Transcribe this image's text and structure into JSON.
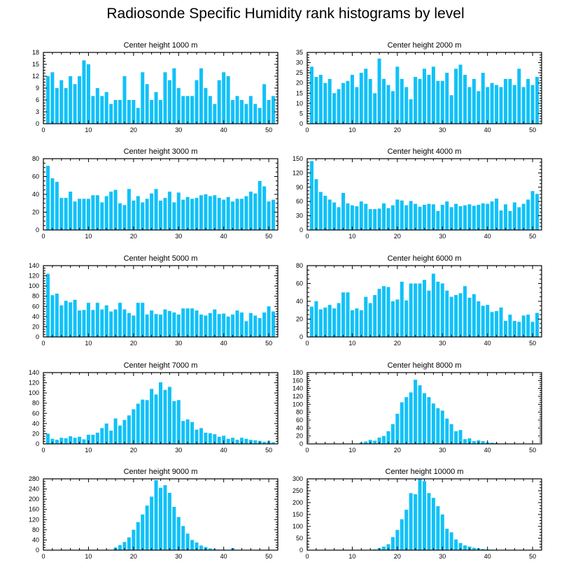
{
  "title": "Radiosonde Specific Humidity rank histograms by level",
  "colors": {
    "bar": "#11c1f8",
    "axis": "#000000",
    "background": "#ffffff"
  },
  "chart_data": [
    {
      "type": "bar",
      "title": "Center height 1000 m",
      "xlim": [
        0,
        52
      ],
      "ylim": [
        0,
        18
      ],
      "xticks": [
        0,
        10,
        20,
        30,
        40,
        50
      ],
      "yticks": [
        0,
        3,
        6,
        9,
        12,
        15,
        18
      ],
      "categories": [
        1,
        2,
        3,
        4,
        5,
        6,
        7,
        8,
        9,
        10,
        11,
        12,
        13,
        14,
        15,
        16,
        17,
        18,
        19,
        20,
        21,
        22,
        23,
        24,
        25,
        26,
        27,
        28,
        29,
        30,
        31,
        32,
        33,
        34,
        35,
        36,
        37,
        38,
        39,
        40,
        41,
        42,
        43,
        44,
        45,
        46,
        47,
        48,
        49,
        50,
        51
      ],
      "values": [
        12,
        13,
        9,
        11,
        9,
        12,
        10,
        12,
        16,
        15,
        7,
        9,
        7,
        8,
        5,
        6,
        6,
        12,
        6,
        6,
        4,
        13,
        10,
        6,
        8,
        6,
        13,
        11,
        14,
        9,
        7,
        7,
        7,
        11,
        14,
        9,
        7,
        5,
        11,
        13,
        12,
        6,
        7,
        6,
        5,
        7,
        5,
        4,
        10,
        6,
        7
      ]
    },
    {
      "type": "bar",
      "title": "Center height 2000 m",
      "xlim": [
        0,
        52
      ],
      "ylim": [
        0,
        35
      ],
      "xticks": [
        0,
        10,
        20,
        30,
        40,
        50
      ],
      "yticks": [
        0,
        5,
        10,
        15,
        20,
        25,
        30,
        35
      ],
      "categories": [
        1,
        2,
        3,
        4,
        5,
        6,
        7,
        8,
        9,
        10,
        11,
        12,
        13,
        14,
        15,
        16,
        17,
        18,
        19,
        20,
        21,
        22,
        23,
        24,
        25,
        26,
        27,
        28,
        29,
        30,
        31,
        32,
        33,
        34,
        35,
        36,
        37,
        38,
        39,
        40,
        41,
        42,
        43,
        44,
        45,
        46,
        47,
        48,
        49,
        50,
        51
      ],
      "values": [
        28,
        23,
        24,
        20,
        22,
        15,
        17,
        20,
        21,
        24,
        18,
        25,
        27,
        22,
        15,
        32,
        22,
        19,
        16,
        28,
        22,
        18,
        12,
        23,
        22,
        27,
        24,
        28,
        21,
        21,
        25,
        14,
        27,
        29,
        24,
        18,
        22,
        16,
        25,
        18,
        20,
        19,
        18,
        22,
        22,
        19,
        27,
        18,
        22,
        19,
        23
      ]
    },
    {
      "type": "bar",
      "title": "Center height 3000 m",
      "xlim": [
        0,
        52
      ],
      "ylim": [
        0,
        80
      ],
      "xticks": [
        0,
        10,
        20,
        30,
        40,
        50
      ],
      "yticks": [
        0,
        20,
        40,
        60,
        80
      ],
      "categories": [
        1,
        2,
        3,
        4,
        5,
        6,
        7,
        8,
        9,
        10,
        11,
        12,
        13,
        14,
        15,
        16,
        17,
        18,
        19,
        20,
        21,
        22,
        23,
        24,
        25,
        26,
        27,
        28,
        29,
        30,
        31,
        32,
        33,
        34,
        35,
        36,
        37,
        38,
        39,
        40,
        41,
        42,
        43,
        44,
        45,
        46,
        47,
        48,
        49,
        50,
        51
      ],
      "values": [
        72,
        58,
        54,
        36,
        36,
        43,
        32,
        35,
        35,
        35,
        39,
        39,
        31,
        38,
        43,
        45,
        30,
        28,
        46,
        33,
        38,
        31,
        35,
        41,
        46,
        33,
        36,
        43,
        31,
        42,
        34,
        37,
        35,
        36,
        39,
        40,
        38,
        39,
        36,
        34,
        37,
        32,
        35,
        35,
        38,
        43,
        41,
        55,
        49,
        32,
        34
      ]
    },
    {
      "type": "bar",
      "title": "Center height 4000 m",
      "xlim": [
        0,
        52
      ],
      "ylim": [
        0,
        150
      ],
      "xticks": [
        0,
        10,
        20,
        30,
        40,
        50
      ],
      "yticks": [
        0,
        30,
        60,
        90,
        120,
        150
      ],
      "categories": [
        1,
        2,
        3,
        4,
        5,
        6,
        7,
        8,
        9,
        10,
        11,
        12,
        13,
        14,
        15,
        16,
        17,
        18,
        19,
        20,
        21,
        22,
        23,
        24,
        25,
        26,
        27,
        28,
        29,
        30,
        31,
        32,
        33,
        34,
        35,
        36,
        37,
        38,
        39,
        40,
        41,
        42,
        43,
        44,
        45,
        46,
        47,
        48,
        49,
        50,
        51
      ],
      "values": [
        145,
        107,
        80,
        72,
        64,
        58,
        48,
        78,
        56,
        52,
        50,
        60,
        55,
        44,
        44,
        45,
        56,
        46,
        52,
        64,
        62,
        52,
        61,
        55,
        49,
        53,
        55,
        54,
        40,
        53,
        60,
        48,
        55,
        50,
        52,
        54,
        51,
        53,
        56,
        55,
        60,
        66,
        41,
        54,
        40,
        58,
        48,
        55,
        64,
        82,
        76
      ]
    },
    {
      "type": "bar",
      "title": "Center height 5000 m",
      "xlim": [
        0,
        52
      ],
      "ylim": [
        0,
        140
      ],
      "xticks": [
        0,
        10,
        20,
        30,
        40,
        50
      ],
      "yticks": [
        0,
        20,
        40,
        60,
        80,
        100,
        120,
        140
      ],
      "categories": [
        1,
        2,
        3,
        4,
        5,
        6,
        7,
        8,
        9,
        10,
        11,
        12,
        13,
        14,
        15,
        16,
        17,
        18,
        19,
        20,
        21,
        22,
        23,
        24,
        25,
        26,
        27,
        28,
        29,
        30,
        31,
        32,
        33,
        34,
        35,
        36,
        37,
        38,
        39,
        40,
        41,
        42,
        43,
        44,
        45,
        46,
        47,
        48,
        49,
        50,
        51
      ],
      "values": [
        124,
        82,
        85,
        62,
        71,
        68,
        73,
        52,
        53,
        67,
        53,
        67,
        54,
        62,
        50,
        54,
        67,
        54,
        47,
        42,
        67,
        67,
        44,
        52,
        45,
        44,
        54,
        51,
        48,
        44,
        56,
        56,
        56,
        52,
        44,
        42,
        47,
        54,
        45,
        46,
        40,
        44,
        52,
        48,
        31,
        47,
        42,
        37,
        48,
        60,
        50
      ]
    },
    {
      "type": "bar",
      "title": "Center height 6000 m",
      "xlim": [
        0,
        52
      ],
      "ylim": [
        0,
        80
      ],
      "xticks": [
        0,
        10,
        20,
        30,
        40,
        50
      ],
      "yticks": [
        0,
        20,
        40,
        60,
        80
      ],
      "categories": [
        1,
        2,
        3,
        4,
        5,
        6,
        7,
        8,
        9,
        10,
        11,
        12,
        13,
        14,
        15,
        16,
        17,
        18,
        19,
        20,
        21,
        22,
        23,
        24,
        25,
        26,
        27,
        28,
        29,
        30,
        31,
        32,
        33,
        34,
        35,
        36,
        37,
        38,
        39,
        40,
        41,
        42,
        43,
        44,
        45,
        46,
        47,
        48,
        49,
        50,
        51
      ],
      "values": [
        34,
        40,
        31,
        33,
        36,
        32,
        38,
        50,
        50,
        30,
        32,
        30,
        45,
        38,
        47,
        54,
        57,
        56,
        40,
        42,
        62,
        41,
        60,
        60,
        60,
        64,
        52,
        71,
        62,
        60,
        52,
        45,
        47,
        49,
        57,
        44,
        48,
        40,
        35,
        36,
        28,
        29,
        33,
        18,
        25,
        18,
        17,
        24,
        25,
        17,
        27
      ]
    },
    {
      "type": "bar",
      "title": "Center height 7000 m",
      "xlim": [
        0,
        52
      ],
      "ylim": [
        0,
        140
      ],
      "xticks": [
        0,
        10,
        20,
        30,
        40,
        50
      ],
      "yticks": [
        0,
        20,
        40,
        60,
        80,
        100,
        120,
        140
      ],
      "categories": [
        1,
        2,
        3,
        4,
        5,
        6,
        7,
        8,
        9,
        10,
        11,
        12,
        13,
        14,
        15,
        16,
        17,
        18,
        19,
        20,
        21,
        22,
        23,
        24,
        25,
        26,
        27,
        28,
        29,
        30,
        31,
        32,
        33,
        34,
        35,
        36,
        37,
        38,
        39,
        40,
        41,
        42,
        43,
        44,
        45,
        46,
        47,
        48,
        49,
        50,
        51
      ],
      "values": [
        20,
        10,
        8,
        12,
        11,
        15,
        12,
        14,
        9,
        18,
        18,
        22,
        31,
        40,
        26,
        50,
        36,
        47,
        56,
        68,
        79,
        87,
        86,
        108,
        97,
        121,
        106,
        112,
        84,
        86,
        45,
        48,
        43,
        28,
        31,
        22,
        21,
        19,
        14,
        16,
        10,
        12,
        8,
        12,
        10,
        8,
        7,
        6,
        4,
        5,
        3
      ]
    },
    {
      "type": "bar",
      "title": "Center height 8000 m",
      "xlim": [
        0,
        52
      ],
      "ylim": [
        0,
        180
      ],
      "xticks": [
        0,
        10,
        20,
        30,
        40,
        50
      ],
      "yticks": [
        0,
        20,
        40,
        60,
        80,
        100,
        120,
        140,
        160,
        180
      ],
      "categories": [
        1,
        2,
        3,
        4,
        5,
        6,
        7,
        8,
        9,
        10,
        11,
        12,
        13,
        14,
        15,
        16,
        17,
        18,
        19,
        20,
        21,
        22,
        23,
        24,
        25,
        26,
        27,
        28,
        29,
        30,
        31,
        32,
        33,
        34,
        35,
        36,
        37,
        38,
        39,
        40,
        41,
        42,
        43,
        44,
        45,
        46,
        47,
        48,
        49,
        50,
        51
      ],
      "values": [
        0,
        0,
        0,
        0,
        0,
        0,
        0,
        0,
        0,
        0,
        0,
        3,
        6,
        10,
        8,
        16,
        20,
        32,
        50,
        76,
        105,
        118,
        130,
        162,
        148,
        128,
        118,
        102,
        90,
        84,
        64,
        50,
        32,
        35,
        12,
        14,
        7,
        9,
        7,
        4,
        3,
        2,
        1,
        1,
        0,
        0,
        0,
        0,
        0,
        0,
        0
      ]
    },
    {
      "type": "bar",
      "title": "Center height 9000 m",
      "xlim": [
        0,
        52
      ],
      "ylim": [
        0,
        280
      ],
      "xticks": [
        0,
        10,
        20,
        30,
        40,
        50
      ],
      "yticks": [
        0,
        40,
        80,
        120,
        160,
        200,
        240,
        280
      ],
      "categories": [
        1,
        2,
        3,
        4,
        5,
        6,
        7,
        8,
        9,
        10,
        11,
        12,
        13,
        14,
        15,
        16,
        17,
        18,
        19,
        20,
        21,
        22,
        23,
        24,
        25,
        26,
        27,
        28,
        29,
        30,
        31,
        32,
        33,
        34,
        35,
        36,
        37,
        38,
        39,
        40,
        41,
        42,
        43,
        44,
        45,
        46,
        47,
        48,
        49,
        50,
        51
      ],
      "values": [
        0,
        0,
        0,
        0,
        0,
        0,
        0,
        0,
        0,
        0,
        0,
        0,
        0,
        1,
        1,
        10,
        20,
        32,
        50,
        80,
        110,
        140,
        175,
        210,
        275,
        245,
        255,
        225,
        170,
        130,
        95,
        65,
        40,
        30,
        18,
        12,
        7,
        4,
        2,
        2,
        0,
        8,
        0,
        0,
        0,
        0,
        0,
        0,
        0,
        0,
        0
      ]
    },
    {
      "type": "bar",
      "title": "Center height 10000 m",
      "xlim": [
        0,
        52
      ],
      "ylim": [
        0,
        300
      ],
      "xticks": [
        0,
        10,
        20,
        30,
        40,
        50
      ],
      "yticks": [
        0,
        50,
        100,
        150,
        200,
        250,
        300
      ],
      "categories": [
        1,
        2,
        3,
        4,
        5,
        6,
        7,
        8,
        9,
        10,
        11,
        12,
        13,
        14,
        15,
        16,
        17,
        18,
        19,
        20,
        21,
        22,
        23,
        24,
        25,
        26,
        27,
        28,
        29,
        30,
        31,
        32,
        33,
        34,
        35,
        36,
        37,
        38,
        39,
        40,
        41,
        42,
        43,
        44,
        45,
        46,
        47,
        48,
        49,
        50,
        51
      ],
      "values": [
        0,
        0,
        0,
        0,
        0,
        0,
        0,
        0,
        0,
        0,
        0,
        0,
        1,
        1,
        3,
        8,
        15,
        25,
        55,
        85,
        130,
        170,
        240,
        235,
        300,
        290,
        240,
        220,
        185,
        150,
        90,
        75,
        45,
        30,
        20,
        15,
        10,
        8,
        5,
        3,
        2,
        1,
        0,
        0,
        0,
        0,
        0,
        0,
        0,
        0,
        0
      ]
    }
  ]
}
